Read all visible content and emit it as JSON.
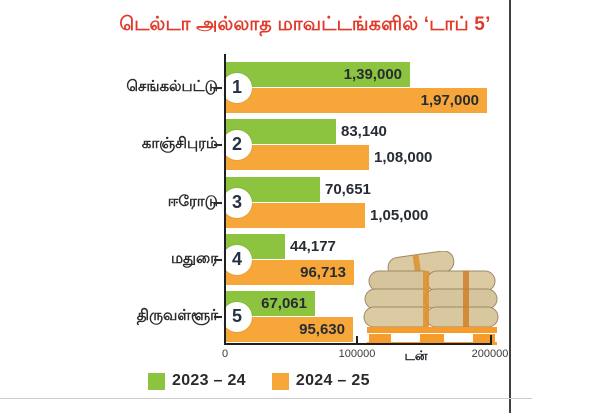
{
  "chart_data": {
    "type": "bar",
    "orientation": "horizontal",
    "title": "டெல்டா அல்லாத மாவட்டங்களில் ‘டாப் 5’",
    "title_color": "#e23a2a",
    "unit_label": "டன்",
    "categories": [
      "செங்கல்பட்டு",
      "காஞ்சிபுரம்",
      "ஈரோடு",
      "மதுரை",
      "திருவள்ளூர்"
    ],
    "ranks": [
      "1",
      "2",
      "3",
      "4",
      "5"
    ],
    "series": [
      {
        "name": "2023 – 24",
        "color": "#8cc43f",
        "values": [
          139000,
          83140,
          70651,
          44177,
          67061
        ],
        "labels": [
          "1,39,000",
          "83,140",
          "70,651",
          "44,177",
          "67,061"
        ],
        "label_inside": [
          true,
          false,
          false,
          false,
          true
        ]
      },
      {
        "name": "2024 – 25",
        "color": "#f7a73a",
        "values": [
          197000,
          108000,
          105000,
          96713,
          95630
        ],
        "labels": [
          "1,97,000",
          "1,08,000",
          "1,05,000",
          "96,713",
          "95,630"
        ],
        "label_inside": [
          true,
          false,
          false,
          true,
          true
        ]
      }
    ],
    "xlim": [
      0,
      200000
    ],
    "x_ticks": [
      "0",
      "100000",
      "200000"
    ],
    "grid": false,
    "legend_position": "bottom"
  }
}
